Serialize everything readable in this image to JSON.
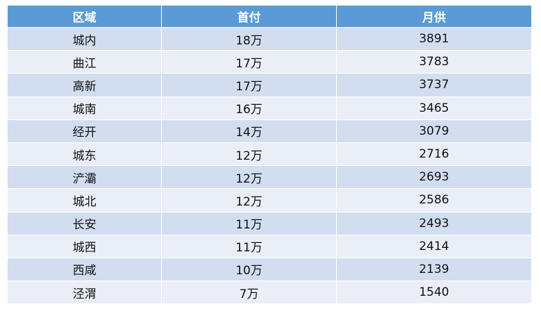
{
  "table": {
    "headers": [
      "区域",
      "首付",
      "月供"
    ],
    "rows": [
      [
        "城内",
        "18万",
        "3891"
      ],
      [
        "曲江",
        "17万",
        "3783"
      ],
      [
        "高新",
        "17万",
        "3737"
      ],
      [
        "城南",
        "16万",
        "3465"
      ],
      [
        "经开",
        "14万",
        "3079"
      ],
      [
        "城东",
        "12万",
        "2716"
      ],
      [
        "浐灞",
        "12万",
        "2693"
      ],
      [
        "城北",
        "12万",
        "2586"
      ],
      [
        "长安",
        "11万",
        "2493"
      ],
      [
        "城西",
        "11万",
        "2414"
      ],
      [
        "西咸",
        "10万",
        "2139"
      ],
      [
        "泾渭",
        "7万",
        "1540"
      ]
    ]
  },
  "colors": {
    "header": "#5B9BD5",
    "row_odd": "#D2DEEF",
    "row_even": "#EAEFF7"
  }
}
